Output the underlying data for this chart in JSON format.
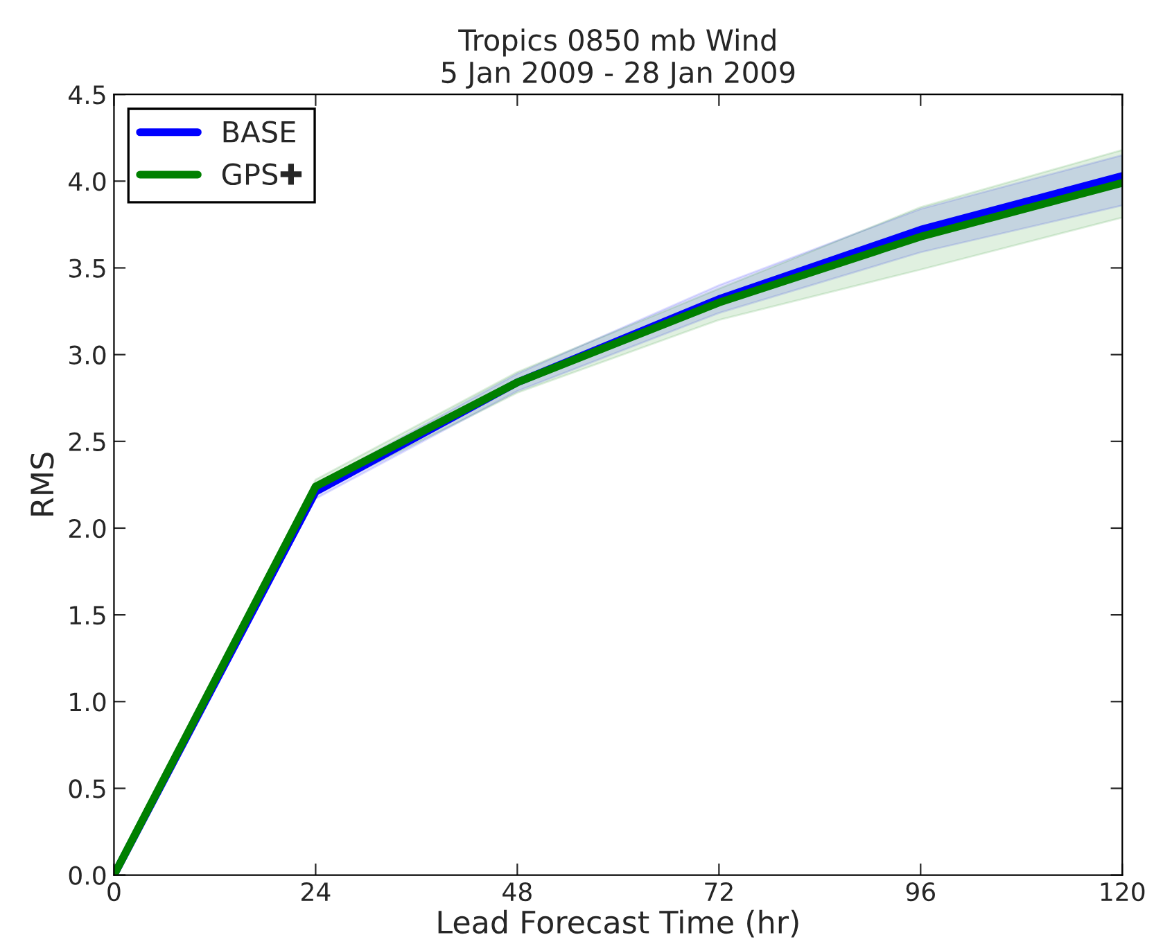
{
  "chart_data": {
    "type": "line",
    "title": "Tropics 0850 mb Wind\n5 Jan 2009 - 28 Jan 2009",
    "xlabel": "Lead Forecast Time (hr)",
    "ylabel": "RMS",
    "x": [
      0,
      24,
      48,
      72,
      96,
      120
    ],
    "series": [
      {
        "name": "BASE",
        "color": "#0000ff",
        "values": [
          0,
          2.21,
          2.84,
          3.32,
          3.72,
          4.03
        ],
        "lower": [
          0,
          2.17,
          2.79,
          3.24,
          3.59,
          3.86
        ],
        "upper": [
          0,
          2.25,
          2.89,
          3.4,
          3.84,
          4.15
        ]
      },
      {
        "name": "GPS✚",
        "color": "#008000",
        "values": [
          0,
          2.24,
          2.84,
          3.3,
          3.68,
          3.99
        ],
        "lower": [
          0,
          2.2,
          2.78,
          3.2,
          3.49,
          3.79
        ],
        "upper": [
          0,
          2.28,
          2.9,
          3.38,
          3.85,
          4.18
        ]
      }
    ],
    "xlim": [
      0,
      120
    ],
    "xticks": [
      0,
      24,
      48,
      72,
      96,
      120
    ],
    "ylim": [
      0,
      4.5
    ],
    "yticks": [
      {
        "value": 0,
        "label": "0.0"
      },
      {
        "value": 0.5,
        "label": "0.5"
      },
      {
        "value": 1,
        "label": "1.0"
      },
      {
        "value": 1.5,
        "label": "1.5"
      },
      {
        "value": 2,
        "label": "2.0"
      },
      {
        "value": 2.5,
        "label": "2.5"
      },
      {
        "value": 3,
        "label": "3.0"
      },
      {
        "value": 3.5,
        "label": "3.5"
      },
      {
        "value": 4,
        "label": "4.0"
      },
      {
        "value": 4.5,
        "label": "4.5"
      }
    ],
    "grid": false,
    "legend": "top left",
    "line_style": "solid",
    "marker": "none"
  }
}
